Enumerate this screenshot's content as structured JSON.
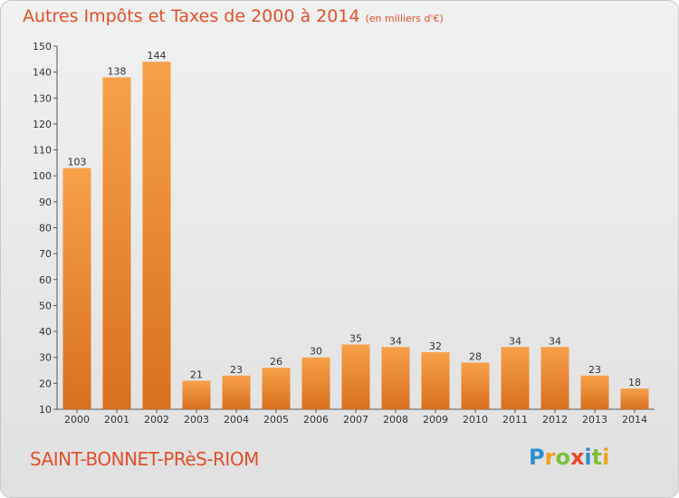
{
  "title": "Autres Impôts et Taxes de 2000 à 2014",
  "subtitle": "(en milliers d'€)",
  "place": "SAINT-BONNET-PRèS-RIOM",
  "logo": {
    "letters": [
      "P",
      "r",
      "o",
      "x",
      "i",
      "t",
      "i"
    ],
    "colors": [
      "#2a8fd0",
      "#f2a01e",
      "#7fbf3a",
      "#e84a2a",
      "#2a8fd0",
      "#7fbf3a",
      "#f2a01e"
    ]
  },
  "colors": {
    "bar_light": "#f7a04a",
    "bar_dark": "#d8701e",
    "text_accent": "#e1502a"
  },
  "chart_data": {
    "type": "bar",
    "title": "Autres Impôts et Taxes de 2000 à 2014",
    "subtitle": "(en milliers d'€)",
    "categories": [
      "2000",
      "2001",
      "2002",
      "2003",
      "2004",
      "2005",
      "2006",
      "2007",
      "2008",
      "2009",
      "2010",
      "2011",
      "2012",
      "2013",
      "2014"
    ],
    "values": [
      103,
      138,
      144,
      21,
      23,
      26,
      30,
      35,
      34,
      32,
      28,
      34,
      34,
      23,
      18
    ],
    "ylim": [
      10,
      150
    ],
    "yticks": [
      10,
      20,
      30,
      40,
      50,
      60,
      70,
      80,
      90,
      100,
      110,
      120,
      130,
      140,
      150
    ],
    "grid": false,
    "xlabel": "",
    "ylabel": ""
  }
}
